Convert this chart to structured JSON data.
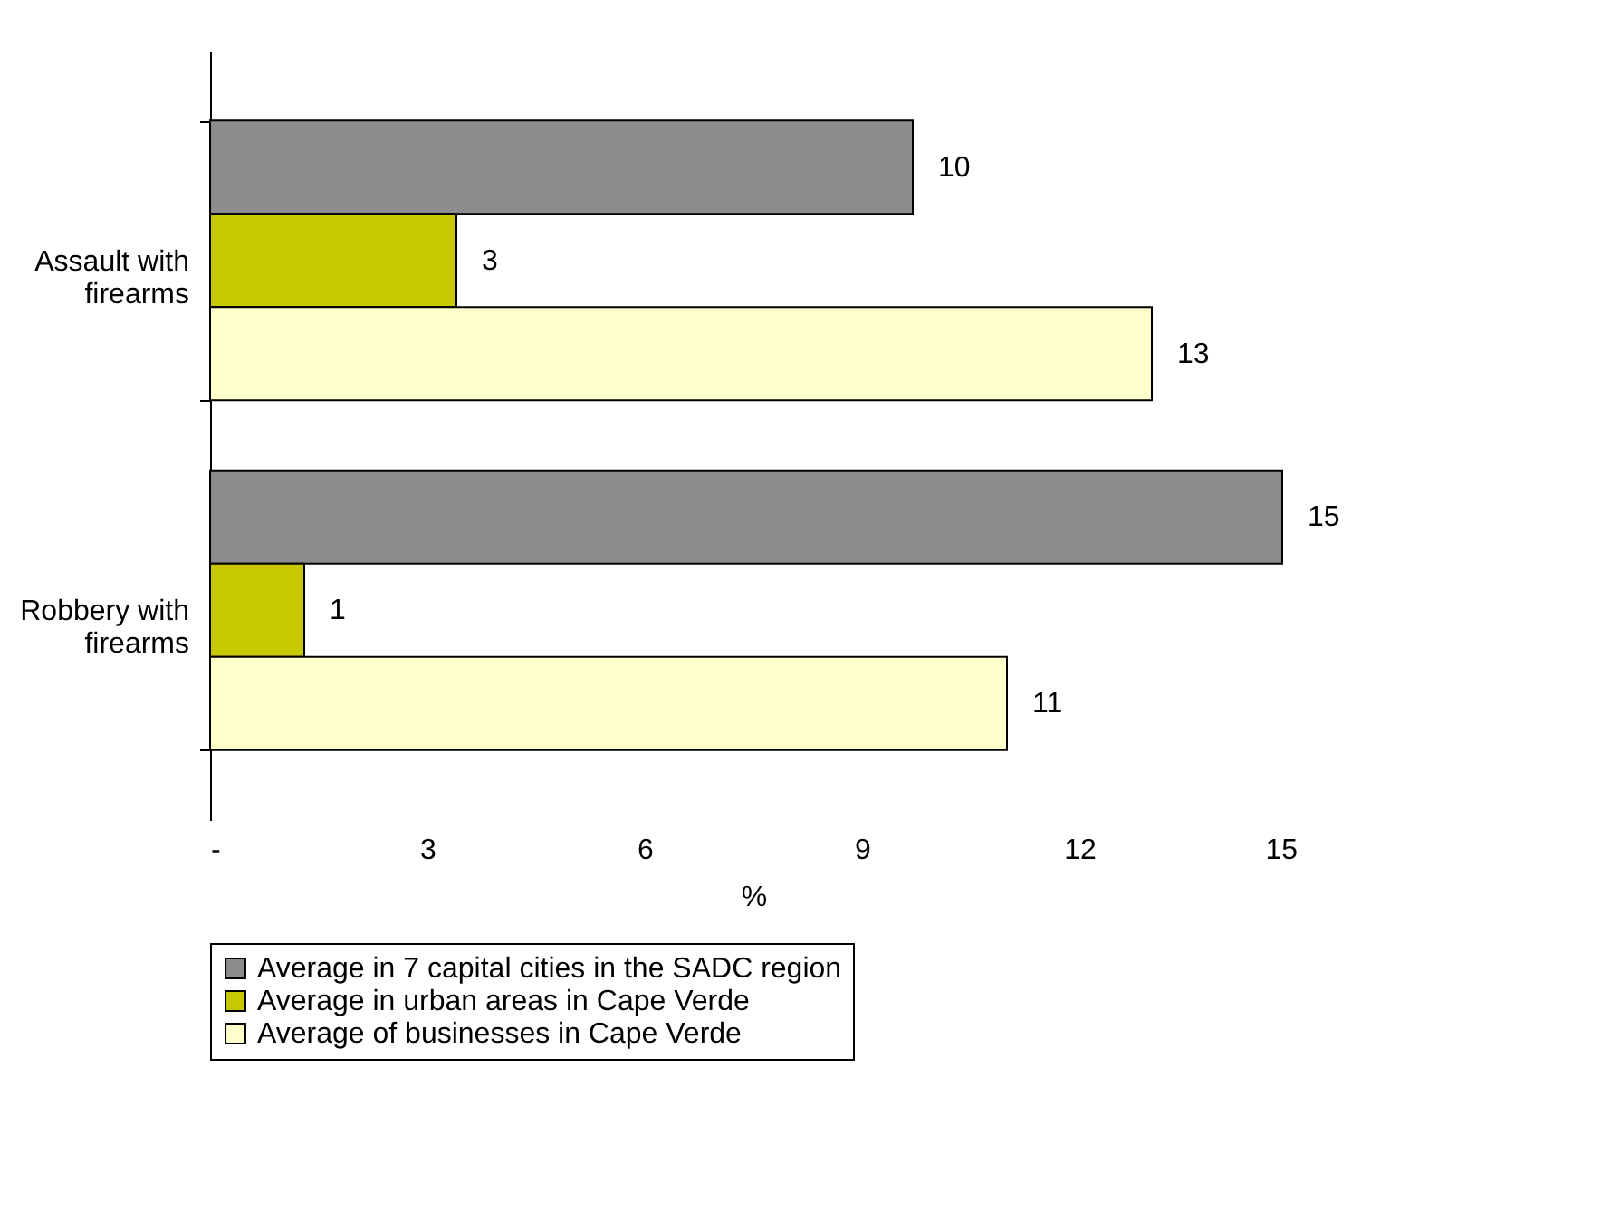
{
  "chart_data": {
    "type": "bar",
    "orientation": "horizontal",
    "categories": [
      "Assault with firearms",
      "Robbery with firearms"
    ],
    "series": [
      {
        "name": "Average in 7 capital cities in the SADC region",
        "color": "#8c8c8c",
        "values": [
          9.7,
          14.8
        ],
        "value_labels": [
          "10",
          "15"
        ]
      },
      {
        "name": "Average in urban areas in Cape Verde",
        "color": "#c8c800",
        "values": [
          3.4,
          1.3
        ],
        "value_labels": [
          "3",
          "1"
        ]
      },
      {
        "name": "Average of businesses in Cape Verde",
        "color": "#ffffcc",
        "values": [
          13,
          11
        ],
        "value_labels": [
          "13",
          "11"
        ]
      }
    ],
    "xlim": [
      0,
      15
    ],
    "xticks": [
      {
        "value": 0,
        "label": "-"
      },
      3,
      6,
      9,
      12,
      15
    ],
    "xlabel": "%",
    "grid": false,
    "legend": "bottom"
  }
}
